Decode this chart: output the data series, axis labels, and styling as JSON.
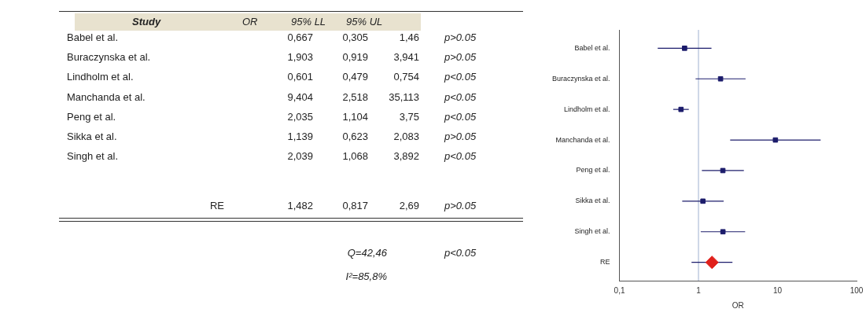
{
  "chart_data": [
    {
      "type": "other",
      "ylabel": "Study",
      "categories": [
        "Babel et al.",
        "Buraczynska et al.",
        "Lindholm et al.",
        "Manchanda et al.",
        "Peng et al.",
        "Sikka et al.",
        "Singh et al.",
        "RE"
      ],
      "series": [
        {
          "name": "OR",
          "values": [
            0.667,
            1.903,
            0.601,
            9.404,
            2.035,
            1.139,
            2.039,
            1.482
          ],
          "value_labels": [
            "0,667",
            "1,903",
            "0,601",
            "9,404",
            "2,035",
            "1,139",
            "2,039",
            "1,482"
          ]
        },
        {
          "name": "95% LL",
          "values": [
            0.305,
            0.919,
            0.479,
            2.518,
            1.104,
            0.623,
            1.068,
            0.817
          ],
          "value_labels": [
            "0,305",
            "0,919",
            "0,479",
            "2,518",
            "1,104",
            "0,623",
            "1,068",
            "0,817"
          ]
        },
        {
          "name": "95% UL",
          "values": [
            1.46,
            3.941,
            0.754,
            35.113,
            3.75,
            2.083,
            3.892,
            2.69
          ],
          "value_labels": [
            "1,46",
            "3,941",
            "0,754",
            "35,113",
            "3,75",
            "2,083",
            "3,892",
            "2,69"
          ]
        }
      ],
      "annotations": [
        "p>0.05",
        "p>0.05",
        "p<0.05",
        "p<0.05",
        "p<0.05",
        "p>0.05",
        "p<0.05",
        "p>0.05",
        "Q=42,46",
        "p<0.05",
        "I²=85,8%"
      ]
    },
    {
      "type": "scatter",
      "orientation": "horizontal",
      "categories": [
        "Babel et al.",
        "Buraczynska et al.",
        "Lindholm et al.",
        "Manchanda et al.",
        "Peng et al.",
        "Sikka et al.",
        "Singh et al.",
        "RE"
      ],
      "series": [
        {
          "color": "#1c1c6b",
          "marker": "square",
          "values": [
            0.667,
            1.903,
            0.601,
            9.404,
            2.035,
            1.139,
            2.039,
            null
          ],
          "errors": [
            [
              0.305,
              1.46
            ],
            [
              0.919,
              3.941
            ],
            [
              0.479,
              0.754
            ],
            [
              2.518,
              35.113
            ],
            [
              1.104,
              3.75
            ],
            [
              0.623,
              2.083
            ],
            [
              1.068,
              3.892
            ],
            null
          ]
        },
        {
          "color": "#e0201b",
          "marker": "diamond",
          "values": [
            null,
            null,
            null,
            null,
            null,
            null,
            null,
            1.482
          ],
          "errors": [
            null,
            null,
            null,
            null,
            null,
            null,
            null,
            [
              0.817,
              2.69
            ]
          ]
        }
      ],
      "xlim": [
        0.1,
        100
      ],
      "xticks": [
        {
          "value": 0.1,
          "label": "0,1"
        },
        1,
        10,
        100
      ],
      "xlabel": "OR",
      "log": "x",
      "grid": false,
      "legend": false,
      "ref_lines": [
        {
          "axis": "x",
          "value": 1,
          "color": "#9fb0cf"
        }
      ]
    }
  ]
}
